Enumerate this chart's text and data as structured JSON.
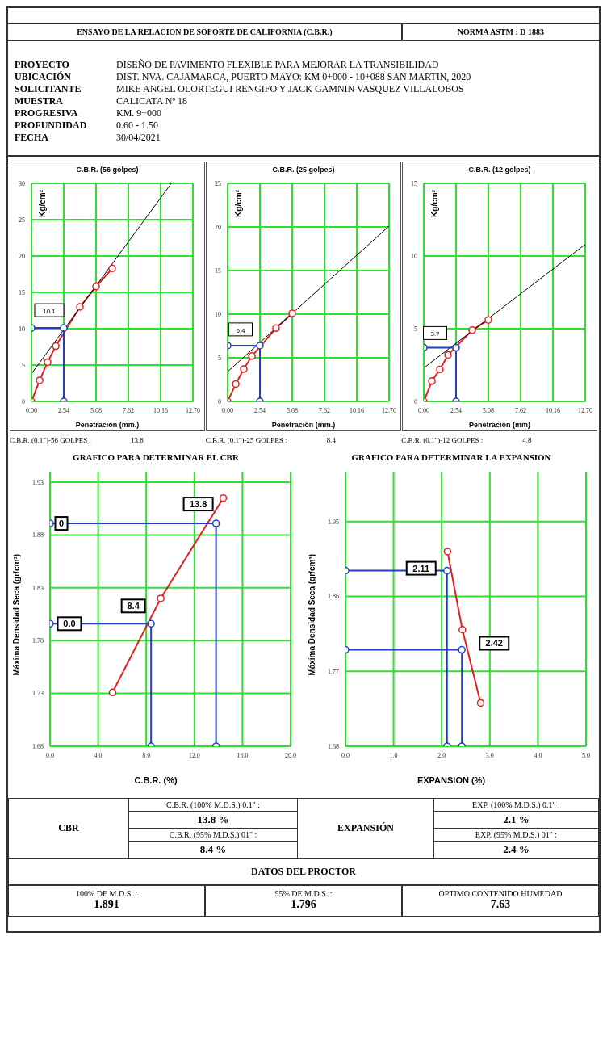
{
  "chart_data": [
    {
      "type": "line",
      "title": "C.B.R. (56 golpes)",
      "xlabel": "Penetración (mm.)",
      "ylabel": "Kg/cm²",
      "xlim": [
        0,
        12.7
      ],
      "xticks": [
        {
          "value": 0,
          "label": "0.00"
        },
        {
          "value": 2.54,
          "label": "2.54"
        },
        {
          "value": 5.08,
          "label": "5.08"
        },
        {
          "value": 7.62,
          "label": "7.62"
        },
        {
          "value": 10.16,
          "label": "10.16"
        },
        {
          "value": 12.7,
          "label": "12.70"
        }
      ],
      "ylim": [
        0,
        30
      ],
      "yticks": [
        0,
        5,
        10,
        15,
        20,
        25,
        30
      ],
      "grid": true,
      "series": [
        {
          "color": "#e02020",
          "marker": "circle",
          "x": [
            0,
            0.64,
            1.27,
            1.91,
            3.81,
            5.08,
            6.35
          ],
          "values": [
            0,
            2.9,
            5.4,
            7.6,
            13.0,
            15.8,
            18.3
          ]
        },
        {
          "color": "#000000",
          "marker": "none",
          "x": [
            0,
            11.0
          ],
          "values": [
            3.8,
            30
          ]
        },
        {
          "color": "#2040c0",
          "marker": "circle",
          "x": [
            0,
            2.54,
            2.54
          ],
          "values": [
            10.1,
            10.1,
            0
          ]
        }
      ],
      "annotations": [
        {
          "text": "10.1",
          "x": 0,
          "y": 10.1
        },
        "ENSAYO DE LA RELACION DE SOPORTE DE CALIFORNIA (C.B.R.)",
        "NORMA ASTM :  D 1883",
        "PROYECTO",
        "DISEÑO DE PAVIMENTO FLEXIBLE PARA MEJORAR LA TRANSIBILIDAD",
        "UBICACIÓN",
        "DIST. NVA. CAJAMARCA, PUERTO MAYO: KM 0+000 - 10+088 SAN MARTIN, 2020",
        "SOLICITANTE",
        "MIKE ANGEL OLORTEGUI RENGIFO Y JACK GAMNIN VASQUEZ VILLALOBOS",
        "MUESTRA",
        "CALICATA Nº 18",
        "PROGRESIVA",
        "KM. 9+000",
        "PROFUNDIDAD",
        "0.60  -  1.50",
        "FECHA",
        "30/04/2021",
        "C.B.R. (0.1\")-56 GOLPES :",
        "13.8"
      ]
    },
    {
      "type": "line",
      "title": "C.B.R. (25 golpes)",
      "xlabel": "Penetración (mm.)",
      "ylabel": "Kg/cm²",
      "xlim": [
        0,
        12.7
      ],
      "xticks": [
        {
          "value": 0,
          "label": "0.00"
        },
        {
          "value": 2.54,
          "label": "2.54"
        },
        {
          "value": 5.08,
          "label": "5.08"
        },
        {
          "value": 7.62,
          "label": "7.62"
        },
        {
          "value": 10.16,
          "label": "10.16"
        },
        {
          "value": 12.7,
          "label": "12.70"
        }
      ],
      "ylim": [
        0,
        25
      ],
      "yticks": [
        0,
        5,
        10,
        15,
        20,
        25
      ],
      "grid": true,
      "series": [
        {
          "color": "#e02020",
          "marker": "circle",
          "x": [
            0,
            0.64,
            1.27,
            1.91,
            3.81,
            5.08
          ],
          "values": [
            0,
            2.0,
            3.7,
            5.2,
            8.4,
            10.1
          ]
        },
        {
          "color": "#000000",
          "marker": "none",
          "x": [
            0,
            12.7
          ],
          "values": [
            3.4,
            20.1
          ]
        },
        {
          "color": "#2040c0",
          "marker": "circle",
          "x": [
            0,
            2.54,
            2.54
          ],
          "values": [
            6.4,
            6.4,
            0
          ]
        }
      ],
      "annotations": [
        {
          "text": "6.4",
          "x": 0,
          "y": 6.4
        },
        "C.B.R. (0.1\")-25 GOLPES :",
        "8.4"
      ]
    },
    {
      "type": "line",
      "title": "C.B.R. (12 golpes)",
      "xlabel": "Penetración (mm)",
      "ylabel": "Kg/cm²",
      "xlim": [
        0,
        12.7
      ],
      "xticks": [
        {
          "value": 0,
          "label": "0.00"
        },
        {
          "value": 2.54,
          "label": "2.54"
        },
        {
          "value": 5.08,
          "label": "5.08"
        },
        {
          "value": 7.62,
          "label": "7.62"
        },
        {
          "value": 10.16,
          "label": "10.16"
        },
        {
          "value": 12.7,
          "label": "12.70"
        }
      ],
      "ylim": [
        0,
        15
      ],
      "yticks": [
        0,
        5,
        10,
        15
      ],
      "grid": true,
      "series": [
        {
          "color": "#e02020",
          "marker": "circle",
          "x": [
            0,
            0.64,
            1.27,
            1.91,
            3.81,
            5.08
          ],
          "values": [
            0,
            1.4,
            2.2,
            3.2,
            4.9,
            5.6
          ]
        },
        {
          "color": "#000000",
          "marker": "none",
          "x": [
            0,
            12.7
          ],
          "values": [
            2.3,
            10.8
          ]
        },
        {
          "color": "#2040c0",
          "marker": "circle",
          "x": [
            0,
            2.54,
            2.54
          ],
          "values": [
            3.7,
            3.7,
            0
          ]
        }
      ],
      "annotations": [
        {
          "text": "3.7",
          "x": 0,
          "y": 3.7
        },
        "C.B.R. (0.1\")-12 GOLPES :",
        "4.8"
      ]
    },
    {
      "type": "line",
      "title": "GRAFICO PARA DETERMINAR EL CBR",
      "xlabel": "C.B.R. (%)",
      "ylabel": "Máxima Densidad Seca (gr/cm³)",
      "xlim": [
        0,
        20
      ],
      "xticks": [
        {
          "value": 0,
          "label": "0.0"
        },
        {
          "value": 4,
          "label": "4.0"
        },
        {
          "value": 8,
          "label": "8.0"
        },
        {
          "value": 12,
          "label": "12.0"
        },
        {
          "value": 16,
          "label": "16.0"
        },
        {
          "value": 20,
          "label": "20.0"
        }
      ],
      "ylim": [
        1.68,
        1.94
      ],
      "yticks": [
        1.68,
        1.73,
        1.78,
        1.83,
        1.88,
        1.93
      ],
      "grid": true,
      "series": [
        {
          "color": "#e02020",
          "marker": "circle",
          "x": [
            5.2,
            9.2,
            14.4
          ],
          "values": [
            1.731,
            1.82,
            1.915
          ]
        },
        {
          "color": "#2040c0",
          "marker": "circle",
          "x": [
            0,
            13.8,
            13.8
          ],
          "values": [
            1.891,
            1.891,
            1.68
          ]
        },
        {
          "color": "#2040c0",
          "marker": "circle",
          "x": [
            0,
            8.4,
            8.4
          ],
          "values": [
            1.796,
            1.796,
            1.68
          ]
        }
      ],
      "annotations": [
        {
          "text": "13.8",
          "x": 13.8,
          "y": 1.891
        },
        {
          "text": "8.4",
          "x": 8.4,
          "y": 1.796
        },
        {
          "text": "0.0",
          "x": 0,
          "y": 1.796
        },
        {
          "text": "0",
          "x": 0,
          "y": 1.891
        }
      ]
    },
    {
      "type": "line",
      "title": "GRAFICO PARA DETERMINAR LA EXPANSION",
      "xlabel": "EXPANSION (%)",
      "ylabel": "Máxima Densidad Seca (gr/cm³)",
      "xlim": [
        0,
        5
      ],
      "xticks": [
        {
          "value": 0,
          "label": "0.0"
        },
        {
          "value": 1,
          "label": "1.0"
        },
        {
          "value": 2,
          "label": "2.0"
        },
        {
          "value": 3,
          "label": "3.0"
        },
        {
          "value": 4,
          "label": "4.0"
        },
        {
          "value": 5,
          "label": "5.0"
        }
      ],
      "ylim": [
        1.68,
        2.01
      ],
      "yticks": [
        1.68,
        1.77,
        1.86,
        1.95
      ],
      "grid": true,
      "series": [
        {
          "color": "#e02020",
          "marker": "circle",
          "x": [
            2.12,
            2.43,
            2.81
          ],
          "values": [
            1.914,
            1.82,
            1.732
          ]
        },
        {
          "color": "#2040c0",
          "marker": "circle",
          "x": [
            0,
            2.11,
            2.11
          ],
          "values": [
            1.891,
            1.891,
            1.68
          ]
        },
        {
          "color": "#2040c0",
          "marker": "circle",
          "x": [
            0,
            2.42,
            2.42
          ],
          "values": [
            1.796,
            1.796,
            1.68
          ]
        }
      ],
      "annotations": [
        {
          "text": "2.11",
          "x": 2.11,
          "y": 1.891
        },
        {
          "text": "2.42",
          "x": 2.42,
          "y": 1.796
        },
        "CBR",
        "C.B.R. (100% M.D.S.) 0.1\" :",
        "13.8 %",
        "C.B.R. (95% M.D.S.) 01\" :",
        "8.4 %",
        "EXPANSIÓN",
        "EXP. (100% M.D.S.) 0.1\" :",
        "2.1 %",
        "EXP. (95% M.D.S.) 01\" :",
        "2.4 %",
        "DATOS DEL PROCTOR",
        "100% DE M.D.S. :",
        "1.891",
        "95% DE M.D.S. :",
        "1.796",
        "OPTIMO CONTENIDO HUMEDAD",
        "7.63"
      ]
    }
  ]
}
